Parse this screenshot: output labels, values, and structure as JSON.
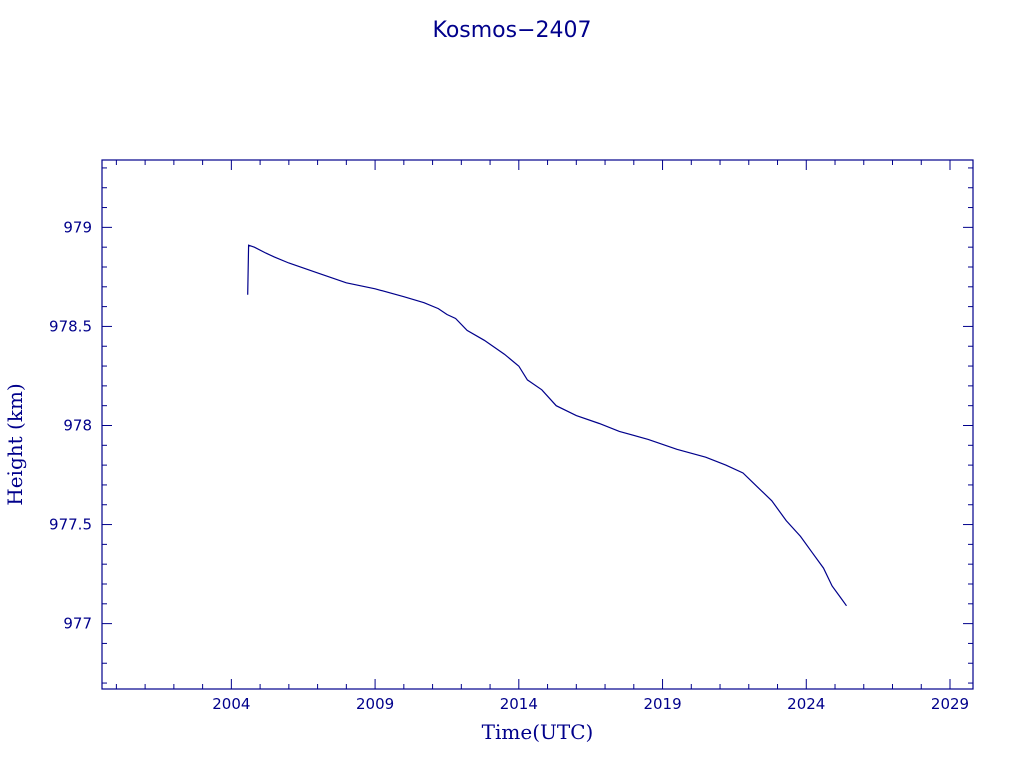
{
  "chart_data": {
    "type": "line",
    "title": "Kosmos−2407",
    "xlabel": "Time(UTC)",
    "ylabel": "Height (km)",
    "xlim": [
      1999.5,
      2029.8
    ],
    "ylim": [
      976.67,
      979.34
    ],
    "x_ticks": [
      2004,
      2009,
      2014,
      2019,
      2024,
      2029
    ],
    "x_tick_labels": [
      "2004",
      "2009",
      "2014",
      "2019",
      "2024",
      "2029"
    ],
    "y_ticks": [
      977,
      977.5,
      978,
      978.5,
      979
    ],
    "y_tick_labels": [
      "977",
      "977.5",
      "978",
      "978.5",
      "979"
    ],
    "grid": false,
    "color": "#00008b",
    "series": [
      {
        "x": [
          2004.57,
          2004.6,
          2004.8,
          2005.2,
          2005.5,
          2006.0,
          2007.0,
          2008.0,
          2009.0,
          2010.0,
          2010.7,
          2011.2,
          2011.5,
          2011.8,
          2012.2,
          2012.8,
          2013.5,
          2014.0,
          2014.3,
          2014.8,
          2015.3,
          2016.0,
          2016.8,
          2017.5,
          2018.5,
          2019.5,
          2020.5,
          2021.2,
          2021.8,
          2022.3,
          2022.8,
          2023.3,
          2023.8,
          2024.2,
          2024.6,
          2024.9,
          2025.2,
          2025.4
        ],
        "y": [
          978.66,
          978.91,
          978.9,
          978.87,
          978.85,
          978.82,
          978.77,
          978.72,
          978.69,
          978.65,
          978.62,
          978.59,
          978.56,
          978.54,
          978.48,
          978.43,
          978.36,
          978.3,
          978.23,
          978.18,
          978.1,
          978.05,
          978.01,
          977.97,
          977.93,
          977.88,
          977.84,
          977.8,
          977.76,
          977.69,
          977.62,
          977.52,
          977.44,
          977.36,
          977.28,
          977.19,
          977.13,
          977.09
        ]
      }
    ]
  }
}
